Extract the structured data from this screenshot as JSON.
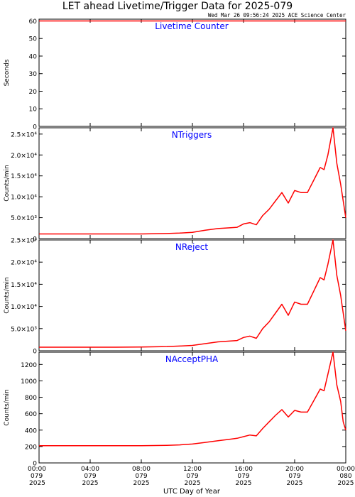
{
  "title": "LET ahead Livetime/Trigger Data for 2025-079",
  "timestamp": "Wed Mar 26 09:56:24 2025 ACE Science Center",
  "xlabel": "UTC Day of Year",
  "x_ticks": [
    {
      "hour": 0,
      "time": "00:00",
      "doy": "079",
      "year": "2025"
    },
    {
      "hour": 4,
      "time": "04:00",
      "doy": "079",
      "year": "2025"
    },
    {
      "hour": 8,
      "time": "08:00",
      "doy": "079",
      "year": "2025"
    },
    {
      "hour": 12,
      "time": "12:00",
      "doy": "079",
      "year": "2025"
    },
    {
      "hour": 16,
      "time": "16:00",
      "doy": "079",
      "year": "2025"
    },
    {
      "hour": 20,
      "time": "20:00",
      "doy": "079",
      "year": "2025"
    },
    {
      "hour": 24,
      "time": "00:00",
      "doy": "080",
      "year": "2025"
    }
  ],
  "colors": {
    "series": "#ff0000",
    "label": "#0000ff",
    "axis": "#000000",
    "background": "#ffffff"
  },
  "chart_data": [
    {
      "type": "line",
      "series_name": "Livetime Counter",
      "ylabel": "Seconds",
      "ylim": [
        0,
        61
      ],
      "y_ticks": [
        {
          "v": 0,
          "label": "0"
        },
        {
          "v": 10,
          "label": "10"
        },
        {
          "v": 20,
          "label": "20"
        },
        {
          "v": 30,
          "label": "30"
        },
        {
          "v": 40,
          "label": "40"
        },
        {
          "v": 50,
          "label": "50"
        },
        {
          "v": 60,
          "label": "60"
        }
      ],
      "x": [
        0,
        4,
        8,
        12,
        16,
        20,
        24
      ],
      "y": [
        60,
        60,
        60,
        60,
        60,
        60,
        60
      ]
    },
    {
      "type": "line",
      "series_name": "NTriggers",
      "ylabel": "Counts/min",
      "ylim": [
        0,
        26500
      ],
      "y_ticks": [
        {
          "v": 0,
          "label": "0"
        },
        {
          "v": 5000,
          "label": "5.0×10³"
        },
        {
          "v": 10000,
          "label": "1.0×10⁴"
        },
        {
          "v": 15000,
          "label": "1.5×10⁴"
        },
        {
          "v": 20000,
          "label": "2.0×10⁴"
        },
        {
          "v": 25000,
          "label": "2.5×10⁴"
        }
      ],
      "x": [
        0,
        2,
        4,
        6,
        8,
        10,
        11,
        12,
        13,
        14,
        15,
        15.5,
        16,
        16.5,
        17,
        17.5,
        18,
        18.5,
        19,
        19.5,
        20,
        20.5,
        21,
        21.5,
        22,
        22.3,
        22.6,
        23,
        23.3,
        23.6,
        23.8,
        24
      ],
      "y": [
        1100,
        1100,
        1100,
        1100,
        1100,
        1200,
        1300,
        1500,
        2000,
        2400,
        2600,
        2700,
        3500,
        3800,
        3300,
        5500,
        7000,
        9000,
        11000,
        8500,
        11500,
        11000,
        11000,
        14000,
        17000,
        16500,
        20000,
        26500,
        18000,
        13000,
        9000,
        5000
      ]
    },
    {
      "type": "line",
      "series_name": "NReject",
      "ylabel": "Counts/min",
      "ylim": [
        0,
        25000
      ],
      "y_ticks": [
        {
          "v": 0,
          "label": "0"
        },
        {
          "v": 5000,
          "label": "5.0×10³"
        },
        {
          "v": 10000,
          "label": "1.0×10⁴"
        },
        {
          "v": 15000,
          "label": "1.5×10⁴"
        },
        {
          "v": 20000,
          "label": "2.0×10⁴"
        },
        {
          "v": 25000,
          "label": "2.5×10⁴"
        }
      ],
      "x": [
        0,
        2,
        4,
        6,
        8,
        10,
        11,
        12,
        13,
        14,
        15,
        15.5,
        16,
        16.5,
        17,
        17.5,
        18,
        18.5,
        19,
        19.5,
        20,
        20.5,
        21,
        21.5,
        22,
        22.3,
        22.6,
        23,
        23.3,
        23.6,
        23.8,
        24
      ],
      "y": [
        800,
        800,
        800,
        800,
        850,
        950,
        1050,
        1200,
        1600,
        2000,
        2200,
        2300,
        3000,
        3300,
        2800,
        5000,
        6500,
        8500,
        10500,
        8000,
        11000,
        10500,
        10500,
        13500,
        16500,
        16000,
        19500,
        25000,
        17000,
        12500,
        8500,
        4500
      ]
    },
    {
      "type": "line",
      "series_name": "NAcceptPHA",
      "ylabel": "Counts/min",
      "ylim": [
        0,
        1350
      ],
      "y_ticks": [
        {
          "v": 0,
          "label": "0"
        },
        {
          "v": 200,
          "label": "200"
        },
        {
          "v": 400,
          "label": "400"
        },
        {
          "v": 600,
          "label": "600"
        },
        {
          "v": 800,
          "label": "800"
        },
        {
          "v": 1000,
          "label": "1000"
        },
        {
          "v": 1200,
          "label": "1200"
        }
      ],
      "x": [
        0,
        2,
        4,
        6,
        8,
        10,
        11,
        12,
        13,
        14,
        15,
        15.5,
        16,
        16.5,
        17,
        17.5,
        18,
        18.5,
        19,
        19.5,
        20,
        20.5,
        21,
        21.5,
        22,
        22.3,
        22.6,
        23,
        23.3,
        23.6,
        23.8,
        24
      ],
      "y": [
        210,
        210,
        210,
        210,
        210,
        215,
        220,
        230,
        250,
        270,
        290,
        300,
        320,
        340,
        330,
        420,
        500,
        580,
        650,
        560,
        640,
        620,
        620,
        760,
        900,
        880,
        1080,
        1350,
        950,
        750,
        500,
        400
      ]
    }
  ]
}
